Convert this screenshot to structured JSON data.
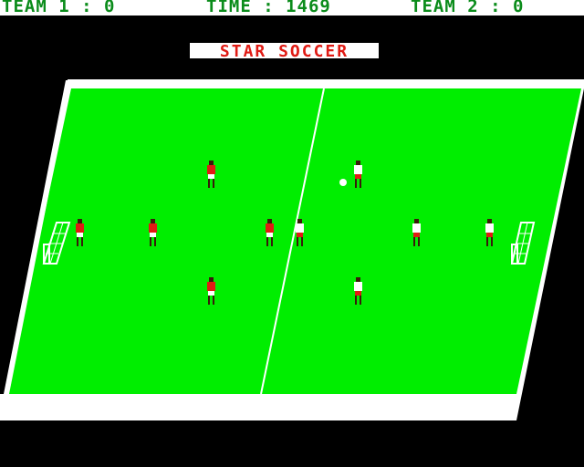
{
  "hud": {
    "team1": "TEAM 1 : 0",
    "time": "TIME : 1469",
    "team2": "TEAM 2 : 0"
  },
  "title": "STAR SOCCER",
  "colors": {
    "grass": "#00ee00",
    "lines": "#ffffff",
    "hud_text": "#0b8c1b",
    "title_text": "#e01b14",
    "team1_shirt": "#e01b14",
    "team2_shirt": "#ffffff",
    "skin": "#3a1a0a"
  },
  "teams": [
    {
      "name": "TEAM 1",
      "score": 0,
      "kit": "red"
    },
    {
      "name": "TEAM 2",
      "score": 0,
      "kit": "white"
    }
  ],
  "time_remaining": 1469
}
